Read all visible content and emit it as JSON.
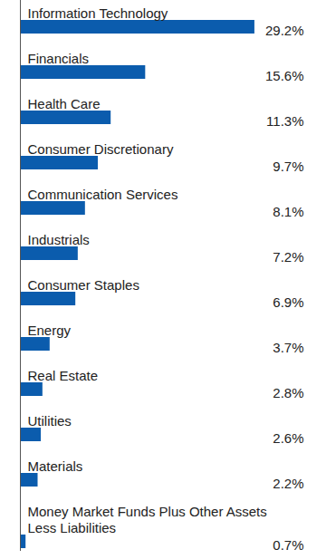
{
  "chart_data": {
    "type": "bar",
    "orientation": "horizontal",
    "categories": [
      "Information Technology",
      "Financials",
      "Health Care",
      "Consumer Discretionary",
      "Communication Services",
      "Industrials",
      "Consumer Staples",
      "Energy",
      "Real Estate",
      "Utilities",
      "Materials",
      "Money Market Funds Plus Other Assets\nLess Liabilities"
    ],
    "values": [
      29.2,
      15.6,
      11.3,
      9.7,
      8.1,
      7.2,
      6.9,
      3.7,
      2.8,
      2.6,
      2.2,
      0.7
    ],
    "value_labels": [
      "29.2%",
      "15.6%",
      "11.3%",
      "9.7%",
      "8.1%",
      "7.2%",
      "6.9%",
      "3.7%",
      "2.8%",
      "2.6%",
      "2.2%",
      "0.7%"
    ],
    "color": "#0b5cad",
    "xlim": [
      0,
      35.3
    ],
    "data_labels": true,
    "tick_labels": false
  }
}
